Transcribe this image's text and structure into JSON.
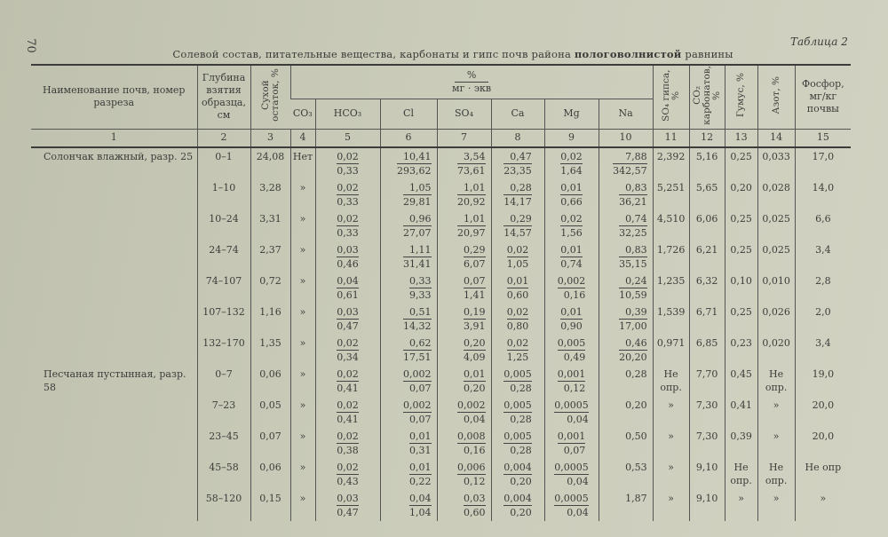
{
  "page_number": "70",
  "table_label": "Таблица 2",
  "title_regular": "Солевой состав, питательные вещества, карбонаты и гипс почв района",
  "title_bold": "пологоволнистой",
  "title_end": "равнины",
  "headers": {
    "name": "Наименование почв, номер разреза",
    "depth": "Глубина взятия образца, см",
    "dry": "Сухой остаток, %",
    "group_top": "%",
    "group_bottom": "мг · экв",
    "co3": "CO₃",
    "hco3": "HCO₃",
    "cl": "Cl",
    "so4": "SO₄",
    "ca": "Ca",
    "mg": "Mg",
    "na": "Na",
    "so4_gyps": "SO₄ гипса, %",
    "co2": "CO₂ карбонатов, %",
    "humus": "Гумус, %",
    "nitrogen": "Азот, %",
    "phosphorus": "Фосфор, мг/кг почвы"
  },
  "column_numbers": [
    "1",
    "2",
    "3",
    "4",
    "5",
    "6",
    "7",
    "8",
    "9",
    "10",
    "11",
    "12",
    "13",
    "14",
    "15"
  ],
  "groups": [
    {
      "name": "Солончак влажный, разр. 25",
      "rows": [
        {
          "depth": "0–1",
          "dry": "24,08",
          "co3": "Нет",
          "hco3": [
            "0,02",
            "0,33"
          ],
          "cl": [
            "10,41",
            "293,62"
          ],
          "so4": [
            "3,54",
            "73,61"
          ],
          "ca": [
            "0,47",
            "23,35"
          ],
          "mg": [
            "0,02",
            "1,64"
          ],
          "na": [
            "7,88",
            "342,57"
          ],
          "so4g": "2,392",
          "co2": "5,16",
          "humus": "0,25",
          "n": "0,033",
          "p": "17,0"
        },
        {
          "depth": "1–10",
          "dry": "3,28",
          "co3": "»",
          "hco3": [
            "0,02",
            "0,33"
          ],
          "cl": [
            "1,05",
            "29,81"
          ],
          "so4": [
            "1,01",
            "20,92"
          ],
          "ca": [
            "0,28",
            "14,17"
          ],
          "mg": [
            "0,01",
            "0,66"
          ],
          "na": [
            "0,83",
            "36,21"
          ],
          "so4g": "5,251",
          "co2": "5,65",
          "humus": "0,20",
          "n": "0,028",
          "p": "14,0"
        },
        {
          "depth": "10–24",
          "dry": "3,31",
          "co3": "»",
          "hco3": [
            "0,02",
            "0,33"
          ],
          "cl": [
            "0,96",
            "27,07"
          ],
          "so4": [
            "1,01",
            "20,97"
          ],
          "ca": [
            "0,29",
            "14,57"
          ],
          "mg": [
            "0,02",
            "1,56"
          ],
          "na": [
            "0,74",
            "32,25"
          ],
          "so4g": "4,510",
          "co2": "6,06",
          "humus": "0,25",
          "n": "0,025",
          "p": "6,6"
        },
        {
          "depth": "24–74",
          "dry": "2,37",
          "co3": "»",
          "hco3": [
            "0,03",
            "0,46"
          ],
          "cl": [
            "1,11",
            "31,41"
          ],
          "so4": [
            "0,29",
            "6,07"
          ],
          "ca": [
            "0,02",
            "1,05"
          ],
          "mg": [
            "0,01",
            "0,74"
          ],
          "na": [
            "0,83",
            "35,15"
          ],
          "so4g": "1,726",
          "co2": "6,21",
          "humus": "0,25",
          "n": "0,025",
          "p": "3,4"
        },
        {
          "depth": "74–107",
          "dry": "0,72",
          "co3": "»",
          "hco3": [
            "0,04",
            "0,61"
          ],
          "cl": [
            "0,33",
            "9,33"
          ],
          "so4": [
            "0,07",
            "1,41"
          ],
          "ca": [
            "0,01",
            "0,60"
          ],
          "mg": [
            "0,002",
            "0,16"
          ],
          "na": [
            "0,24",
            "10,59"
          ],
          "so4g": "1,235",
          "co2": "6,32",
          "humus": "0,10",
          "n": "0,010",
          "p": "2,8"
        },
        {
          "depth": "107–132",
          "dry": "1,16",
          "co3": "»",
          "hco3": [
            "0,03",
            "0,47"
          ],
          "cl": [
            "0,51",
            "14,32"
          ],
          "so4": [
            "0,19",
            "3,91"
          ],
          "ca": [
            "0,02",
            "0,80"
          ],
          "mg": [
            "0,01",
            "0,90"
          ],
          "na": [
            "0,39",
            "17,00"
          ],
          "so4g": "1,539",
          "co2": "6,71",
          "humus": "0,25",
          "n": "0,026",
          "p": "2,0"
        },
        {
          "depth": "132–170",
          "dry": "1,35",
          "co3": "»",
          "hco3": [
            "0,02",
            "0,34"
          ],
          "cl": [
            "0,62",
            "17,51"
          ],
          "so4": [
            "0,20",
            "4,09"
          ],
          "ca": [
            "0,02",
            "1,25"
          ],
          "mg": [
            "0,005",
            "0,49"
          ],
          "na": [
            "0,46",
            "20,20"
          ],
          "so4g": "0,971",
          "co2": "6,85",
          "humus": "0,23",
          "n": "0,020",
          "p": "3,4"
        }
      ]
    },
    {
      "name": "Песчаная пустынная, разр. 58",
      "rows": [
        {
          "depth": "0–7",
          "dry": "0,06",
          "co3": "»",
          "hco3": [
            "0,02",
            "0,41"
          ],
          "cl": [
            "0,002",
            "0,07"
          ],
          "so4": [
            "0,01",
            "0,20"
          ],
          "ca": [
            "0,005",
            "0,28"
          ],
          "mg": [
            "0,001",
            "0,12"
          ],
          "na": "0,28",
          "so4g": "Не опр.",
          "co2": "7,70",
          "humus": "0,45",
          "n": "Не опр.",
          "p": "19,0"
        },
        {
          "depth": "7–23",
          "dry": "0,05",
          "co3": "»",
          "hco3": [
            "0,02",
            "0,41"
          ],
          "cl": [
            "0,002",
            "0,07"
          ],
          "so4": [
            "0,002",
            "0,04"
          ],
          "ca": [
            "0,005",
            "0,28"
          ],
          "mg": [
            "0,0005",
            "0,04"
          ],
          "na": "0,20",
          "so4g": "»",
          "co2": "7,30",
          "humus": "0,41",
          "n": "»",
          "p": "20,0"
        },
        {
          "depth": "23–45",
          "dry": "0,07",
          "co3": "»",
          "hco3": [
            "0,02",
            "0,38"
          ],
          "cl": [
            "0,01",
            "0,31"
          ],
          "so4": [
            "0,008",
            "0,16"
          ],
          "ca": [
            "0,005",
            "0,28"
          ],
          "mg": [
            "0,001",
            "0,07"
          ],
          "na": "0,50",
          "so4g": "»",
          "co2": "7,30",
          "humus": "0,39",
          "n": "»",
          "p": "20,0"
        },
        {
          "depth": "45–58",
          "dry": "0,06",
          "co3": "»",
          "hco3": [
            "0,02",
            "0,43"
          ],
          "cl": [
            "0,01",
            "0,22"
          ],
          "so4": [
            "0,006",
            "0,12"
          ],
          "ca": [
            "0,004",
            "0,20"
          ],
          "mg": [
            "0,0005",
            "0,04"
          ],
          "na": "0,53",
          "so4g": "»",
          "co2": "9,10",
          "humus": "Не опр.",
          "n": "Не опр.",
          "p": "Не опр"
        },
        {
          "depth": "58–120",
          "dry": "0,15",
          "co3": "»",
          "hco3": [
            "0,03",
            "0,47"
          ],
          "cl": [
            "0,04",
            "1,04"
          ],
          "so4": [
            "0,03",
            "0,60"
          ],
          "ca": [
            "0,004",
            "0,20"
          ],
          "mg": [
            "0,0005",
            "0,04"
          ],
          "na": "1,87",
          "so4g": "»",
          "co2": "9,10",
          "humus": "»",
          "n": "»",
          "p": "»"
        }
      ]
    }
  ]
}
